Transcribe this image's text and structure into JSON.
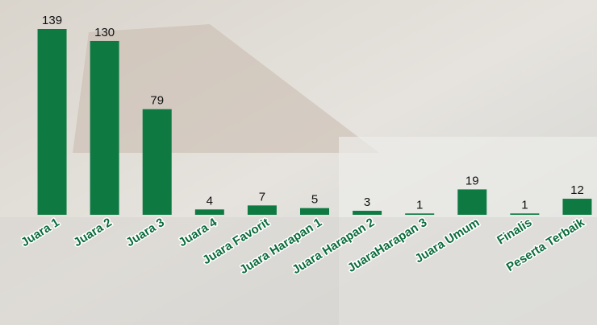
{
  "chart_data": {
    "type": "bar",
    "categories": [
      "Juara 1",
      "Juara 2",
      "Juara 3",
      "Juara 4",
      "Juara Favorit",
      "Juara Harapan 1",
      "Juara Harapan 2",
      "JuaraHarapan 3",
      "Juara Umum",
      "Finalis",
      "Peserta Terbaik"
    ],
    "values": [
      139,
      130,
      79,
      4,
      7,
      5,
      3,
      1,
      19,
      1,
      12
    ],
    "color": "#0e7a42"
  }
}
